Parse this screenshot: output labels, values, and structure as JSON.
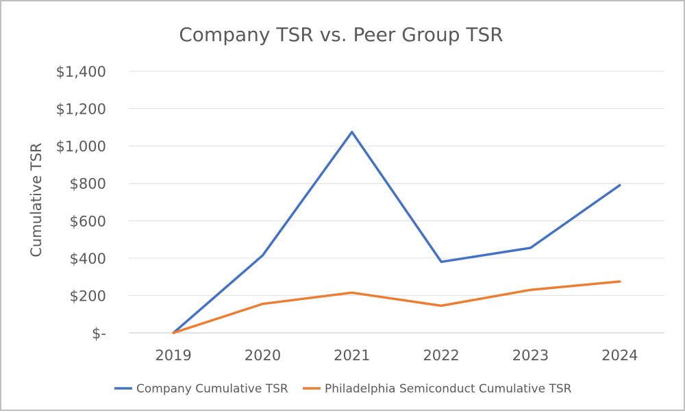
{
  "chart_data": {
    "type": "line",
    "title": "Company TSR vs. Peer Group TSR",
    "xlabel": "",
    "ylabel": "Cumulative TSR",
    "categories": [
      "2019",
      "2020",
      "2021",
      "2022",
      "2023",
      "2024"
    ],
    "ylim": [
      0,
      1400
    ],
    "yticks": [
      0,
      200,
      400,
      600,
      800,
      1000,
      1200,
      1400
    ],
    "ytick_labels": [
      "$-",
      "$200",
      "$400",
      "$600",
      "$800",
      "$1,000",
      "$1,200",
      "$1,400"
    ],
    "grid": true,
    "legend_position": "bottom",
    "series": [
      {
        "name": "Company Cumulative TSR",
        "color": "#4472c4",
        "values": [
          0,
          415,
          1075,
          380,
          455,
          790
        ]
      },
      {
        "name": "Philadelphia Semiconduct Cumulative TSR",
        "color": "#ed7d31",
        "values": [
          0,
          155,
          215,
          145,
          230,
          275
        ]
      }
    ]
  }
}
